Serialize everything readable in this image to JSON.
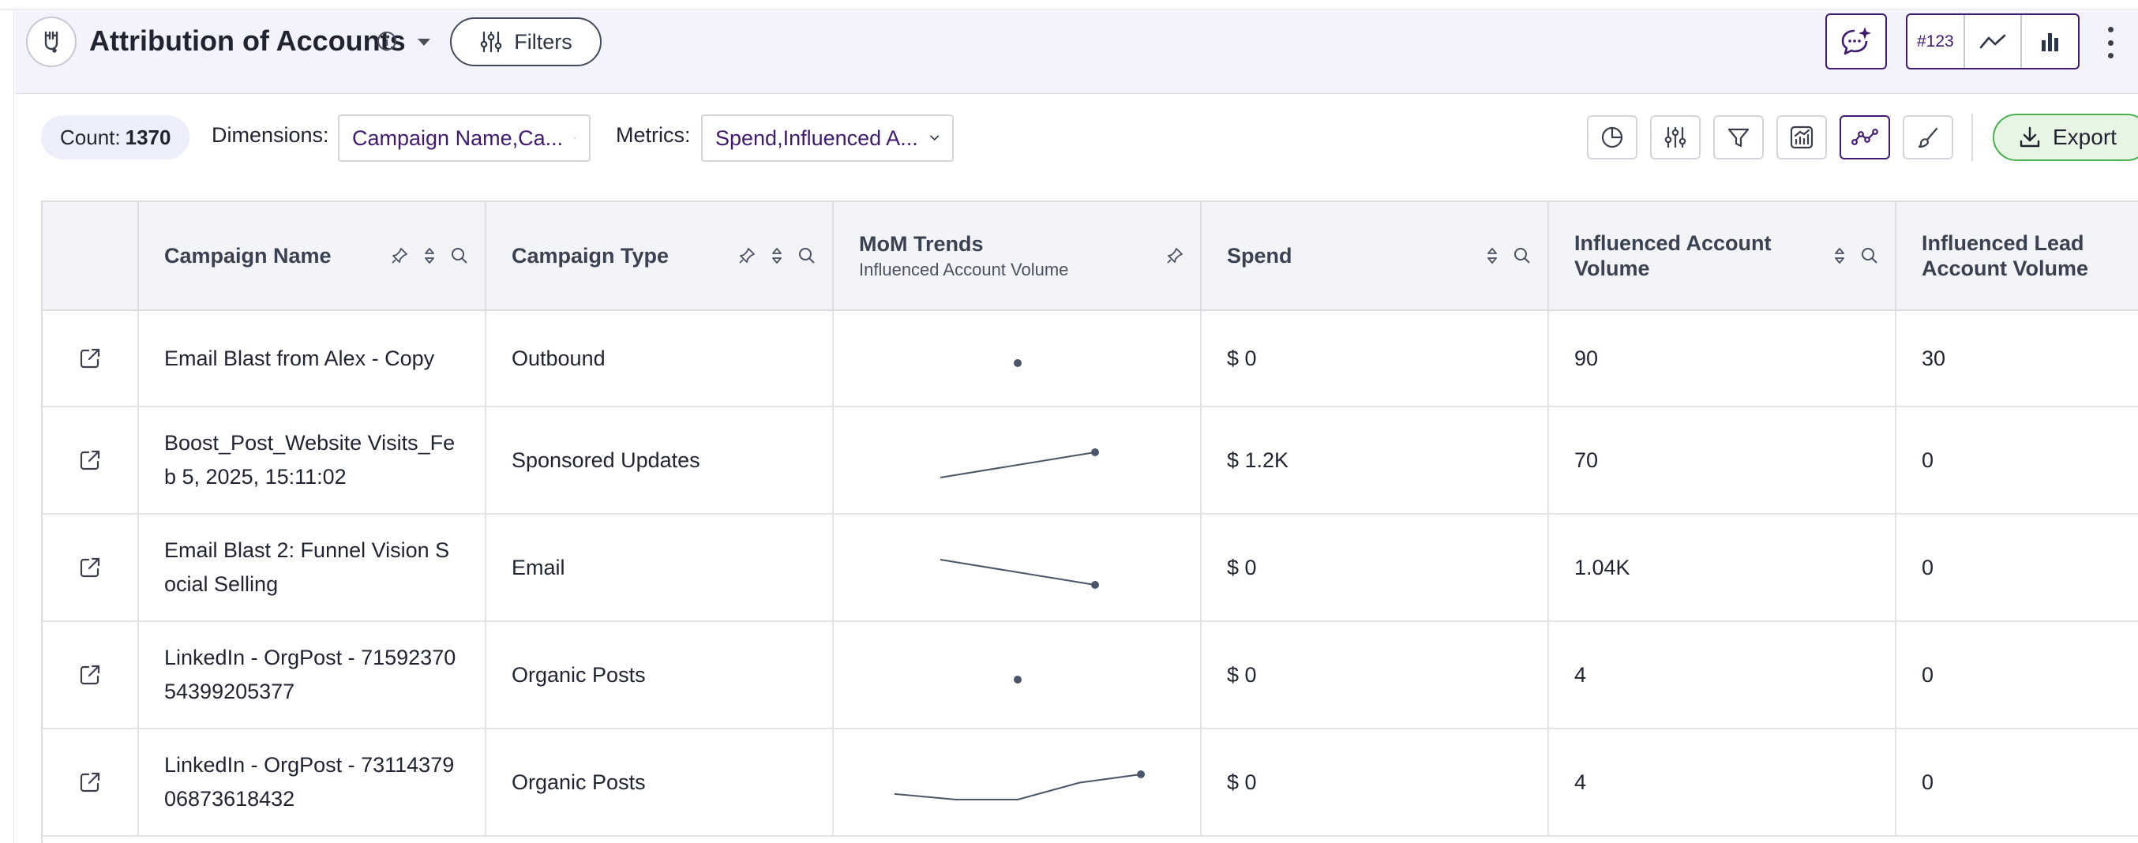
{
  "header": {
    "title": "Attribution of Accounts",
    "filters_label": "Filters",
    "view_toggle": [
      "#123",
      "line",
      "bar"
    ]
  },
  "toolbar": {
    "count_label": "Count:",
    "count_value": "1370",
    "dimensions_label": "Dimensions:",
    "dimensions_value": "Campaign Name,Ca...",
    "metrics_label": "Metrics:",
    "metrics_value": "Spend,Influenced A...",
    "tools": [
      "pie-chart-icon",
      "sliders-icon",
      "funnel-icon",
      "chart-settings-icon",
      "trend-icon",
      "brush-icon"
    ],
    "export_label": "Export"
  },
  "table": {
    "columns": [
      {
        "title": "",
        "sub": ""
      },
      {
        "title": "Campaign Name",
        "sub": ""
      },
      {
        "title": "Campaign Type",
        "sub": ""
      },
      {
        "title": "MoM Trends",
        "sub": "Influenced Account Volume"
      },
      {
        "title": "Spend",
        "sub": ""
      },
      {
        "title": "Influenced Account Volume",
        "sub": ""
      },
      {
        "title": "Influenced Lead Account Volume",
        "sub": ""
      }
    ],
    "rows": [
      {
        "name": "Email Blast from Alex - Copy",
        "type": "Outbound",
        "trend": [
          1
        ],
        "spend": "$ 0",
        "iav": "90",
        "ilav": "30"
      },
      {
        "name": "Boost_Post_Website Visits_Feb 5, 2025, 15:11:02",
        "type": "Sponsored Updates",
        "trend": [
          1,
          2
        ],
        "spend": "$ 1.2K",
        "iav": "70",
        "ilav": "0"
      },
      {
        "name": "Email Blast 2: Funnel Vision Social Selling",
        "type": "Email",
        "trend": [
          2,
          1
        ],
        "spend": "$ 0",
        "iav": "1.04K",
        "ilav": "0"
      },
      {
        "name": "LinkedIn - OrgPost - 7159237054399205377",
        "type": "Organic Posts",
        "trend": [
          1
        ],
        "spend": "$ 0",
        "iav": "4",
        "ilav": "0"
      },
      {
        "name": "LinkedIn - OrgPost - 7311437906873618432",
        "type": "Organic Posts",
        "trend": [
          1.1,
          0.9,
          0.9,
          1.5,
          1.8
        ],
        "spend": "$ 0",
        "iav": "4",
        "ilav": "0"
      }
    ]
  },
  "colors": {
    "accent": "#3f1a6e",
    "header_bg": "#f3f3fd",
    "export_bg": "#e6f5e4",
    "export_border": "#4caf50",
    "sparkline": "#4a5568"
  }
}
